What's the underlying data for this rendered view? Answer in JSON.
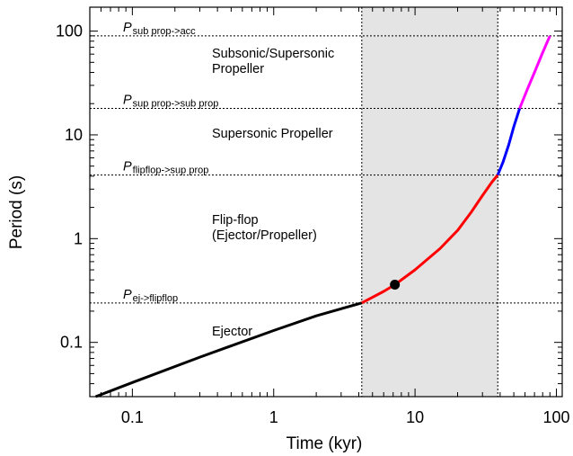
{
  "chart_data": {
    "type": "line",
    "title": "",
    "xlabel": "Time (kyr)",
    "ylabel": "Period (s)",
    "x_scale": "log",
    "y_scale": "log",
    "xlim": [
      0.05,
      110
    ],
    "ylim": [
      0.03,
      170
    ],
    "x_ticks": [
      {
        "value": 0.1,
        "label": "0.1"
      },
      {
        "value": 1,
        "label": "1"
      },
      {
        "value": 10,
        "label": "10"
      },
      {
        "value": 100,
        "label": "100"
      }
    ],
    "y_ticks": [
      {
        "value": 0.1,
        "label": "0.1"
      },
      {
        "value": 1,
        "label": "1"
      },
      {
        "value": 10,
        "label": "10"
      },
      {
        "value": 100,
        "label": "100"
      }
    ],
    "grid": false,
    "shaded_interval": {
      "x": [
        4.2,
        38.5
      ],
      "color": "#e4e4e4"
    },
    "vertical_lines": [
      4.2,
      38.5
    ],
    "thresholds": [
      {
        "name": "P",
        "subscript": "sub prop->acc",
        "value": 90
      },
      {
        "name": "P",
        "subscript": "sup prop->sub prop",
        "value": 18
      },
      {
        "name": "P",
        "subscript": "flipflop->sup prop",
        "value": 4.1
      },
      {
        "name": "P",
        "subscript": "ej->flipflop",
        "value": 0.24
      }
    ],
    "regions": [
      {
        "lines": [
          "Subsonic/Supersonic",
          "Propeller"
        ]
      },
      {
        "lines": [
          "Supersonic Propeller"
        ]
      },
      {
        "lines": [
          "Flip-flop",
          "(Ejector/Propeller)"
        ]
      },
      {
        "lines": [
          "Ejector"
        ]
      }
    ],
    "series": [
      {
        "color": "#000000",
        "x": [
          0.055,
          0.1,
          0.3,
          1,
          2,
          4.2
        ],
        "y": [
          0.03,
          0.041,
          0.072,
          0.13,
          0.18,
          0.24
        ]
      },
      {
        "color": "#ff0000",
        "x": [
          4.2,
          6,
          7.2,
          10,
          15,
          20,
          25,
          30,
          35,
          38.5
        ],
        "y": [
          0.24,
          0.31,
          0.36,
          0.5,
          0.8,
          1.2,
          1.8,
          2.6,
          3.5,
          4.1
        ]
      },
      {
        "color": "#0000ff",
        "x": [
          38.5,
          42,
          46,
          50,
          55
        ],
        "y": [
          4.1,
          5.5,
          8,
          12,
          18
        ]
      },
      {
        "color": "#ff00ff",
        "x": [
          55,
          62,
          70,
          80,
          90
        ],
        "y": [
          18,
          27,
          40,
          62,
          90
        ]
      }
    ],
    "marker": {
      "x": 7.2,
      "y": 0.36,
      "color": "#000000"
    }
  }
}
